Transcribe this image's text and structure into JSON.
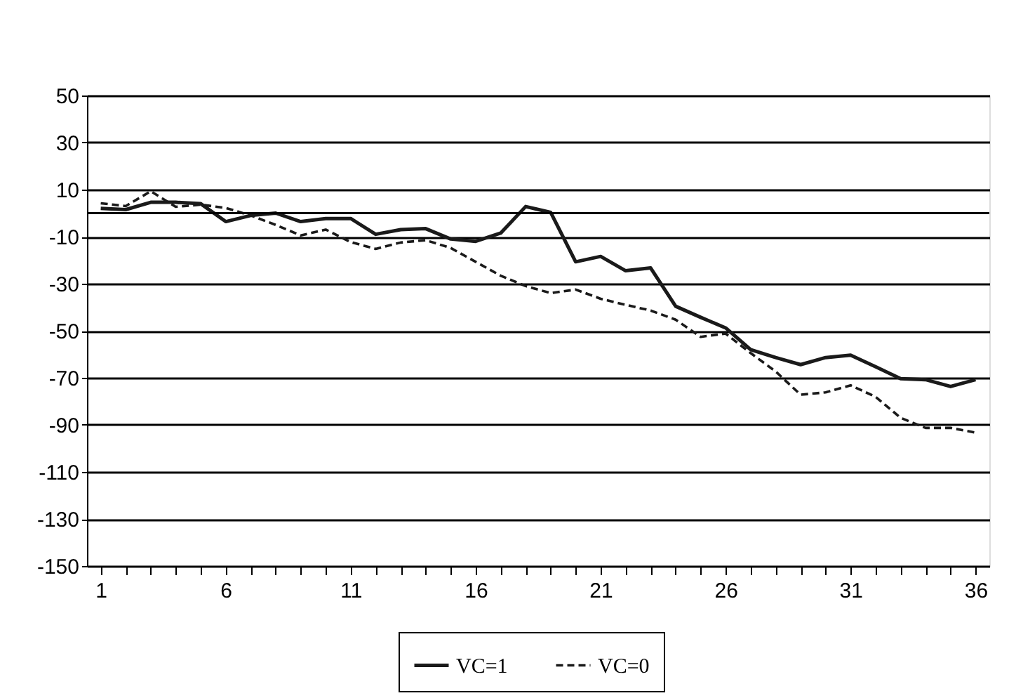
{
  "chart_data": {
    "type": "line",
    "x": [
      1,
      2,
      3,
      4,
      5,
      6,
      7,
      8,
      9,
      10,
      11,
      12,
      13,
      14,
      15,
      16,
      17,
      18,
      19,
      20,
      21,
      22,
      23,
      24,
      25,
      26,
      27,
      28,
      29,
      30,
      31,
      32,
      33,
      34,
      35,
      36
    ],
    "xlim": [
      0.45,
      36.55
    ],
    "xticks": [
      1,
      {
        "value": 2,
        "label": null
      },
      {
        "value": 3,
        "label": null
      },
      {
        "value": 4,
        "label": null
      },
      {
        "value": 5,
        "label": null
      },
      6,
      {
        "value": 7,
        "label": null
      },
      {
        "value": 8,
        "label": null
      },
      {
        "value": 9,
        "label": null
      },
      {
        "value": 10,
        "label": null
      },
      11,
      {
        "value": 12,
        "label": null
      },
      {
        "value": 13,
        "label": null
      },
      {
        "value": 14,
        "label": null
      },
      {
        "value": 15,
        "label": null
      },
      16,
      {
        "value": 17,
        "label": null
      },
      {
        "value": 18,
        "label": null
      },
      {
        "value": 19,
        "label": null
      },
      {
        "value": 20,
        "label": null
      },
      21,
      {
        "value": 22,
        "label": null
      },
      {
        "value": 23,
        "label": null
      },
      {
        "value": 24,
        "label": null
      },
      {
        "value": 25,
        "label": null
      },
      26,
      {
        "value": 27,
        "label": null
      },
      {
        "value": 28,
        "label": null
      },
      {
        "value": 29,
        "label": null
      },
      {
        "value": 30,
        "label": null
      },
      31,
      {
        "value": 32,
        "label": null
      },
      {
        "value": 33,
        "label": null
      },
      {
        "value": 34,
        "label": null
      },
      {
        "value": 35,
        "label": null
      },
      36
    ],
    "ylim": [
      -150,
      50
    ],
    "yticks": [
      50,
      30,
      10,
      -10,
      -30,
      -50,
      -70,
      -90,
      -110,
      -130,
      -150
    ],
    "grid": "y",
    "legend": "bottom",
    "ref_lines": [
      {
        "axis": "y",
        "value": 0,
        "color": "#000000"
      }
    ],
    "series": [
      {
        "name": "VC=1",
        "color": "#1a1a1a",
        "line_style": "solid",
        "values": [
          2,
          1.5,
          4.6,
          4.6,
          4,
          -3.6,
          -1,
          0,
          -3.6,
          -2.3,
          -2.3,
          -9,
          -7,
          -6.6,
          -11,
          -12,
          -8.5,
          2.8,
          0.3,
          -20.7,
          -18.4,
          -24.5,
          -23.3,
          -39.6,
          -44.3,
          -48.8,
          -58,
          -61.4,
          -64.4,
          -61.4,
          -60.4,
          -65.3,
          -70.4,
          -70.8,
          -73.7,
          -70.8
        ]
      },
      {
        "name": "VC=0",
        "color": "#1a1a1a",
        "line_style": "dashed",
        "values": [
          4.2,
          3,
          9.3,
          2.7,
          3.6,
          2.2,
          -1,
          -5,
          -9.5,
          -7,
          -12.3,
          -15.2,
          -12.5,
          -11.5,
          -14.8,
          -20.7,
          -26.6,
          -31,
          -34,
          -32.5,
          -36.4,
          -39,
          -41.4,
          -45.3,
          -52.6,
          -51.2,
          -59.5,
          -67.3,
          -77.2,
          -76.2,
          -73.2,
          -78.1,
          -87,
          -91.3,
          -91.3,
          -93.3
        ]
      }
    ]
  }
}
